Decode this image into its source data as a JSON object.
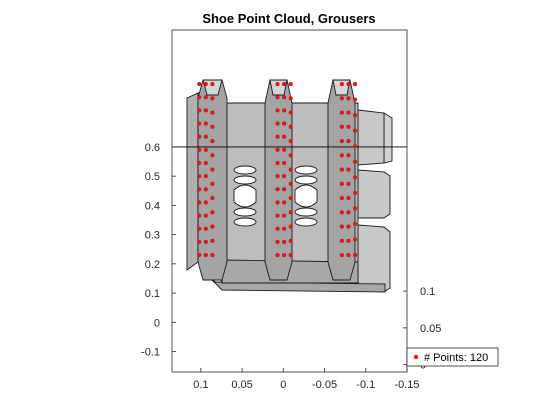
{
  "chart_data": {
    "type": "scatter",
    "title": "Shoe Point Cloud, Grousers",
    "xlabel": "",
    "ylabel": "",
    "grid": false,
    "x_direction": "reversed",
    "x_ticks": [
      "0.1",
      "0.05",
      "0",
      "-0.05",
      "-0.1",
      "-0.15"
    ],
    "y_left_ticks": [
      "-0.1",
      "0",
      "0.1",
      "0.2",
      "0.3",
      "0.4",
      "0.5",
      "0.6"
    ],
    "y_right_ticks": [
      "0",
      "0.05",
      "0.1"
    ],
    "xlim": [
      0.135,
      -0.15
    ],
    "ylim_left": [
      -0.17,
      1.0
    ],
    "ylim_right": [
      -0.01,
      0.455
    ],
    "legend": {
      "entries": [
        "# Points: 120"
      ],
      "placement": "bottom-right outside"
    },
    "colors": {
      "points": "#e8141c",
      "shoe_body": "#bdbdbd",
      "shoe_shadow": "#9a9a9a",
      "outline": "#1a1a1a"
    },
    "horizontal_reference_y": 0.6,
    "series": [
      {
        "name": "# Points: 120",
        "x_columns": [
          0.102,
          0.094,
          0.086,
          0.007,
          -0.001,
          -0.009,
          -0.071,
          -0.079,
          -0.087
        ],
        "y_top": 0.815,
        "y_bottom": 0.23,
        "points_per_column": [
          14,
          14,
          13,
          14,
          14,
          13,
          13,
          13,
          12
        ]
      }
    ]
  }
}
